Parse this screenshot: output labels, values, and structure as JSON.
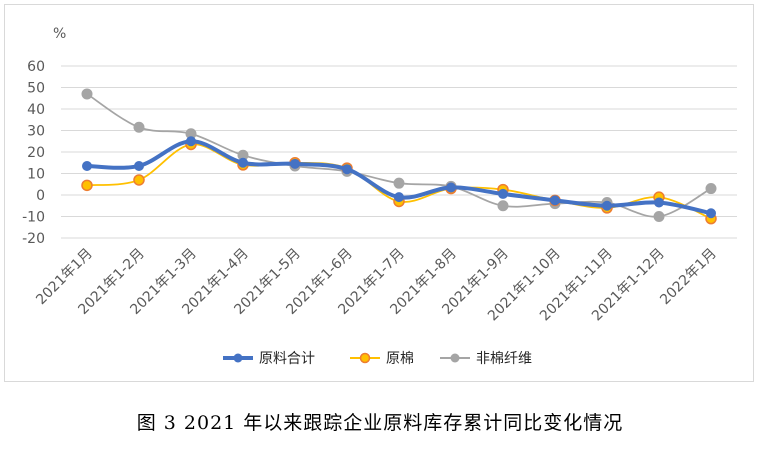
{
  "chart_data": {
    "type": "line",
    "title": "",
    "unit_label": "%",
    "xlabel": "",
    "ylabel": "",
    "ylim": [
      -20,
      60
    ],
    "yticks": [
      60,
      50,
      40,
      30,
      20,
      10,
      0,
      -10,
      -20
    ],
    "grid": true,
    "legend_position": "bottom",
    "categories": [
      "2021年1月",
      "2021年1-2月",
      "2021年1-3月",
      "2021年1-4月",
      "2021年1-5月",
      "2021年1-6月",
      "2021年1-7月",
      "2021年1-8月",
      "2021年1-9月",
      "2021年1-10月",
      "2021年1-11月",
      "2021年1-12月",
      "2022年1月"
    ],
    "series": [
      {
        "name": "原料合计",
        "color": "#4472C4",
        "values": [
          13.5,
          13.5,
          25.0,
          15.0,
          14.5,
          12.0,
          -1.0,
          3.5,
          0.5,
          -2.5,
          -5.0,
          -3.5,
          -8.5
        ]
      },
      {
        "name": "原棉",
        "color": "#FFC000",
        "values": [
          4.5,
          7.0,
          23.5,
          14.0,
          15.0,
          12.5,
          -3.0,
          3.0,
          2.5,
          -2.5,
          -6.0,
          -1.0,
          -11.0
        ]
      },
      {
        "name": "非棉纤维",
        "color": "#A5A5A5",
        "values": [
          47.0,
          31.5,
          28.5,
          18.5,
          13.5,
          11.0,
          5.5,
          4.0,
          -5.0,
          -4.0,
          -3.5,
          -10.0,
          3.0
        ]
      }
    ]
  },
  "caption": "图 3   2021 年以来跟踪企业原料库存累计同比变化情况"
}
